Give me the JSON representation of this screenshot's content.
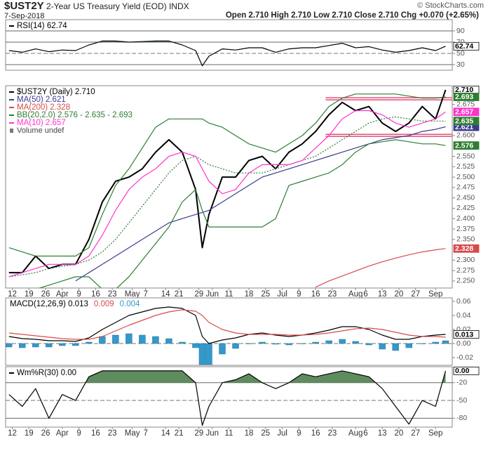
{
  "header": {
    "symbol": "$UST2Y",
    "title": "2-Year US Treasury Yield (EOD) INDX",
    "date": "7-Sep-2018",
    "quote": "Open 2.710  High 2.710  Low 2.710  Close 2.710  Chg +0.070 (+2.65%)",
    "credit": "© StockCharts.com"
  },
  "chart_data": [
    {
      "type": "line",
      "xlim": [
        -1,
        133
      ],
      "ylim": [
        20,
        110
      ],
      "yticks": [
        30,
        50,
        70,
        90
      ],
      "midline": 50,
      "tick_lines": true,
      "fill_above": {
        "level": 70,
        "color": "#5e8c5e"
      },
      "x": [
        0,
        4,
        8,
        12,
        16,
        20,
        24,
        28,
        32,
        36,
        40,
        44,
        48,
        52,
        56,
        58,
        60,
        64,
        68,
        72,
        76,
        80,
        84,
        88,
        92,
        96,
        100,
        104,
        108,
        112,
        116,
        120,
        124,
        128,
        131
      ],
      "series": [
        {
          "name": "RSI(14) 62.74",
          "color": "#000000",
          "tag": "62.74",
          "values": [
            55,
            52,
            58,
            53,
            56,
            55,
            65,
            72,
            72,
            70,
            71,
            72,
            72,
            65,
            55,
            28,
            45,
            58,
            56,
            60,
            60,
            52,
            58,
            60,
            60,
            64,
            68,
            60,
            62,
            56,
            52,
            55,
            60,
            55,
            62.74
          ]
        }
      ]
    },
    {
      "type": "line",
      "xlim": [
        -1,
        133
      ],
      "ylim": [
        2.233,
        2.72
      ],
      "yticks": [
        {
          "value": 2.25,
          "label": "2.250"
        },
        {
          "value": 2.275,
          "label": "2.275"
        },
        {
          "value": 2.3,
          "label": "2.300"
        },
        {
          "value": 2.35,
          "label": "2.350"
        },
        {
          "value": 2.375,
          "label": "2.375"
        },
        {
          "value": 2.4,
          "label": "2.400"
        },
        {
          "value": 2.425,
          "label": "2.425"
        },
        {
          "value": 2.45,
          "label": "2.450"
        },
        {
          "value": 2.475,
          "label": "2.475"
        },
        {
          "value": 2.5,
          "label": "2.500"
        },
        {
          "value": 2.525,
          "label": "2.525"
        },
        {
          "value": 2.55,
          "label": "2.550"
        },
        {
          "value": 2.6,
          "label": "2.600"
        },
        {
          "value": 2.675,
          "label": "2.675"
        }
      ],
      "xticks": [
        {
          "value": 1,
          "label": "12"
        },
        {
          "value": 6,
          "label": "19"
        },
        {
          "value": 11,
          "label": "26"
        },
        {
          "value": 16,
          "label": "Apr"
        },
        {
          "value": 21,
          "label": "9"
        },
        {
          "value": 26,
          "label": "16"
        },
        {
          "value": 31,
          "label": "23"
        },
        {
          "value": 37,
          "label": "May"
        },
        {
          "value": 41,
          "label": "7"
        },
        {
          "value": 47,
          "label": "14"
        },
        {
          "value": 51,
          "label": "21"
        },
        {
          "value": 57,
          "label": "29"
        },
        {
          "value": 61,
          "label": "Jun"
        },
        {
          "value": 66,
          "label": "11"
        },
        {
          "value": 72,
          "label": "18"
        },
        {
          "value": 77,
          "label": "25"
        },
        {
          "value": 82,
          "label": "Jul"
        },
        {
          "value": 87,
          "label": "9"
        },
        {
          "value": 92,
          "label": "16"
        },
        {
          "value": 97,
          "label": "23"
        },
        {
          "value": 104,
          "label": "Aug"
        },
        {
          "value": 107,
          "label": "6"
        },
        {
          "value": 112,
          "label": "13"
        },
        {
          "value": 117,
          "label": "20"
        },
        {
          "value": 122,
          "label": "27"
        },
        {
          "value": 128,
          "label": "Sep"
        }
      ],
      "hlines": [
        2.691,
        2.686,
        2.603,
        2.598
      ],
      "hline_from": 95,
      "hline_color": "#e0507a",
      "legend_extra": "Volume undef",
      "x": [
        0,
        4,
        8,
        12,
        16,
        20,
        24,
        28,
        32,
        36,
        40,
        44,
        48,
        52,
        56,
        58,
        60,
        64,
        68,
        72,
        76,
        80,
        84,
        88,
        92,
        96,
        100,
        104,
        108,
        112,
        116,
        120,
        124,
        128,
        131
      ],
      "series": [
        {
          "name": "$UST2Y (Daily) 2.710",
          "color": "#000000",
          "width": 2,
          "tag": "2.710",
          "values": [
            2.27,
            2.27,
            2.31,
            2.28,
            2.29,
            2.29,
            2.35,
            2.44,
            2.49,
            2.5,
            2.52,
            2.56,
            2.59,
            2.56,
            2.47,
            2.33,
            2.41,
            2.5,
            2.5,
            2.54,
            2.55,
            2.52,
            2.56,
            2.58,
            2.61,
            2.65,
            2.68,
            2.66,
            2.67,
            2.63,
            2.61,
            2.63,
            2.67,
            2.64,
            2.71
          ]
        },
        {
          "name": "MA(50) 2.621",
          "color": "#3b3b8f",
          "tag": "2.621",
          "values": [
            null,
            null,
            null,
            null,
            null,
            2.25,
            2.27,
            2.29,
            2.31,
            2.33,
            2.35,
            2.37,
            2.39,
            2.4,
            2.41,
            2.415,
            2.42,
            2.44,
            2.46,
            2.48,
            2.5,
            2.51,
            2.52,
            2.53,
            2.54,
            2.55,
            2.56,
            2.57,
            2.58,
            2.59,
            2.595,
            2.6,
            2.61,
            2.615,
            2.621
          ]
        },
        {
          "name": "MA(200) 2.328",
          "color": "#d94a4a",
          "tag": "2.328",
          "values": [
            null,
            null,
            null,
            null,
            null,
            null,
            null,
            null,
            null,
            null,
            null,
            null,
            null,
            null,
            null,
            null,
            null,
            null,
            null,
            null,
            null,
            null,
            null,
            null,
            2.235,
            2.25,
            2.262,
            2.274,
            2.286,
            2.296,
            2.305,
            2.313,
            2.32,
            2.325,
            2.328
          ]
        },
        {
          "name": "BB(20,2.0) 2.576 - 2.635 - 2.693",
          "color": "#2e7d32",
          "tag": "2.693",
          "values": [
            2.33,
            2.32,
            2.31,
            2.31,
            2.31,
            2.31,
            2.33,
            2.41,
            2.48,
            2.52,
            2.57,
            2.62,
            2.64,
            2.64,
            2.64,
            2.64,
            2.63,
            2.62,
            2.6,
            2.58,
            2.57,
            2.56,
            2.58,
            2.6,
            2.63,
            2.67,
            2.69,
            2.7,
            2.7,
            2.7,
            2.7,
            2.695,
            2.69,
            2.69,
            2.693
          ]
        },
        {
          "color": "#2e7d32",
          "dash": true,
          "tag": "2.635",
          "values": [
            2.26,
            2.265,
            2.27,
            2.28,
            2.285,
            2.29,
            2.3,
            2.32,
            2.35,
            2.39,
            2.43,
            2.47,
            2.51,
            2.54,
            2.55,
            2.54,
            2.53,
            2.52,
            2.51,
            2.51,
            2.51,
            2.52,
            2.53,
            2.54,
            2.55,
            2.57,
            2.59,
            2.61,
            2.63,
            2.64,
            2.645,
            2.64,
            2.635,
            2.635,
            2.635
          ]
        },
        {
          "color": "#2e7d32",
          "tag": "2.576",
          "values": [
            2.22,
            2.22,
            2.23,
            2.24,
            2.25,
            2.26,
            2.26,
            2.23,
            2.23,
            2.26,
            2.3,
            2.34,
            2.38,
            2.44,
            2.47,
            2.42,
            2.38,
            2.38,
            2.38,
            2.38,
            2.38,
            2.4,
            2.48,
            2.49,
            2.5,
            2.51,
            2.53,
            2.56,
            2.58,
            2.585,
            2.59,
            2.585,
            2.58,
            2.58,
            2.576
          ]
        },
        {
          "name": "MA(10) 2.657",
          "color": "#ff33cc",
          "tag": "2.657",
          "values": [
            2.26,
            2.27,
            2.28,
            2.29,
            2.29,
            2.29,
            2.31,
            2.36,
            2.42,
            2.47,
            2.5,
            2.52,
            2.55,
            2.56,
            2.55,
            2.52,
            2.49,
            2.46,
            2.47,
            2.51,
            2.53,
            2.53,
            2.53,
            2.54,
            2.57,
            2.6,
            2.64,
            2.66,
            2.66,
            2.65,
            2.63,
            2.62,
            2.63,
            2.64,
            2.657
          ]
        }
      ]
    },
    {
      "type": "line",
      "xlim": [
        -1,
        133
      ],
      "ylim": [
        -0.031,
        0.065
      ],
      "midline": 0,
      "yticks": [
        0.06,
        0.04,
        0.02,
        {
          "value": 0,
          "label": "0.00"
        },
        -0.02
      ],
      "x": [
        0,
        4,
        8,
        12,
        16,
        20,
        24,
        28,
        32,
        36,
        40,
        44,
        48,
        52,
        56,
        58,
        60,
        64,
        68,
        72,
        76,
        80,
        84,
        88,
        92,
        96,
        100,
        104,
        108,
        112,
        116,
        120,
        124,
        128,
        131
      ],
      "series": [
        {
          "name": "0.004",
          "color": "#3399cc",
          "kind": "bar",
          "values": [
            -0.005,
            -0.006,
            -0.005,
            -0.005,
            -0.003,
            -0.003,
            0.002,
            0.01,
            0.012,
            0.014,
            0.012,
            0.01,
            0.007,
            0.002,
            -0.006,
            -0.03,
            -0.03,
            -0.015,
            -0.007,
            0,
            0.002,
            -0.001,
            -0.002,
            0,
            0.002,
            0.004,
            0.006,
            0.003,
            -0.002,
            -0.008,
            -0.01,
            -0.006,
            0,
            0.002,
            0.004
          ]
        },
        {
          "name": "MACD(12,26,9) 0.013",
          "color": "#000000",
          "tag": "0.013",
          "values": [
            0.01,
            0.007,
            0.006,
            0.004,
            0.004,
            0.003,
            0.008,
            0.02,
            0.03,
            0.04,
            0.045,
            0.05,
            0.052,
            0.05,
            0.04,
            0.01,
            0,
            0.005,
            0.008,
            0.013,
            0.015,
            0.012,
            0.01,
            0.012,
            0.015,
            0.019,
            0.024,
            0.024,
            0.02,
            0.012,
            0.006,
            0.006,
            0.01,
            0.012,
            0.013
          ]
        },
        {
          "name": "0.009",
          "color": "#d94a4a",
          "values": [
            0.015,
            0.013,
            0.011,
            0.009,
            0.007,
            0.006,
            0.006,
            0.01,
            0.018,
            0.026,
            0.033,
            0.04,
            0.045,
            0.048,
            0.046,
            0.04,
            0.03,
            0.02,
            0.015,
            0.013,
            0.013,
            0.013,
            0.012,
            0.012,
            0.013,
            0.015,
            0.018,
            0.021,
            0.022,
            0.02,
            0.016,
            0.012,
            0.01,
            0.01,
            0.009
          ]
        }
      ]
    },
    {
      "type": "line",
      "xlim": [
        -1,
        133
      ],
      "ylim": [
        -95,
        7
      ],
      "midline": -50,
      "tick_lines": true,
      "yticks": [
        -20,
        -50,
        -80
      ],
      "fill_above": {
        "level": -20,
        "color": "#5e8c5e"
      },
      "xticks": [
        {
          "value": 1,
          "label": "12"
        },
        {
          "value": 6,
          "label": "19"
        },
        {
          "value": 11,
          "label": "26"
        },
        {
          "value": 16,
          "label": "Apr"
        },
        {
          "value": 21,
          "label": "9"
        },
        {
          "value": 26,
          "label": "16"
        },
        {
          "value": 31,
          "label": "23"
        },
        {
          "value": 37,
          "label": "May"
        },
        {
          "value": 41,
          "label": "7"
        },
        {
          "value": 47,
          "label": "14"
        },
        {
          "value": 51,
          "label": "21"
        },
        {
          "value": 57,
          "label": "29"
        },
        {
          "value": 61,
          "label": "Jun"
        },
        {
          "value": 66,
          "label": "11"
        },
        {
          "value": 72,
          "label": "18"
        },
        {
          "value": 77,
          "label": "25"
        },
        {
          "value": 82,
          "label": "Jul"
        },
        {
          "value": 87,
          "label": "9"
        },
        {
          "value": 92,
          "label": "16"
        },
        {
          "value": 97,
          "label": "23"
        },
        {
          "value": 104,
          "label": "Aug"
        },
        {
          "value": 107,
          "label": "6"
        },
        {
          "value": 112,
          "label": "13"
        },
        {
          "value": 117,
          "label": "20"
        },
        {
          "value": 122,
          "label": "27"
        },
        {
          "value": 128,
          "label": "Sep"
        }
      ],
      "x": [
        0,
        4,
        8,
        12,
        16,
        20,
        24,
        28,
        32,
        36,
        40,
        44,
        48,
        52,
        56,
        58,
        60,
        64,
        68,
        72,
        76,
        80,
        84,
        88,
        92,
        96,
        100,
        104,
        108,
        112,
        116,
        120,
        124,
        128,
        131
      ],
      "series": [
        {
          "name": "Wm%R(30) 0.00",
          "color": "#000000",
          "tag": "0.00",
          "values": [
            -40,
            -60,
            -30,
            -80,
            -40,
            -50,
            -10,
            0,
            0,
            0,
            0,
            0,
            0,
            0,
            -20,
            -92,
            -60,
            -20,
            -15,
            -5,
            -20,
            -30,
            -20,
            -5,
            -10,
            -5,
            0,
            -5,
            -10,
            -30,
            -60,
            -90,
            -50,
            -60,
            0
          ]
        }
      ]
    }
  ]
}
